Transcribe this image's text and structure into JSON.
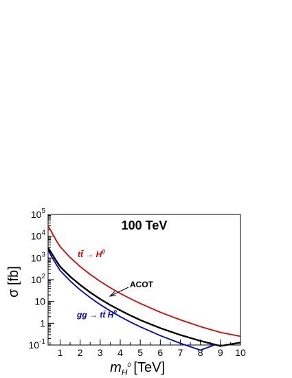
{
  "chart_data": {
    "type": "line",
    "title": "100 TeV",
    "xlabel": "m",
    "xlabel_sub": "H",
    "xlabel_sup": "0",
    "xlabel_unit": "[TeV]",
    "ylabel": "σ [fb]",
    "xlim": [
      0.4,
      10
    ],
    "ylim": [
      0.1,
      100000
    ],
    "yscale": "log",
    "grid": false,
    "x_ticks": [
      1,
      2,
      3,
      4,
      5,
      6,
      7,
      8,
      9,
      10
    ],
    "x_tick_labels": [
      "1",
      "2",
      "3",
      "4",
      "5",
      "6",
      "7",
      "8",
      "9",
      "10"
    ],
    "y_ticks": [
      0.1,
      1,
      10,
      100,
      1000,
      10000,
      100000
    ],
    "y_tick_labels": [
      {
        "base": "10",
        "exp": "-1"
      },
      {
        "base": "1",
        "exp": ""
      },
      {
        "base": "10",
        "exp": ""
      },
      {
        "base": "10",
        "exp": "2"
      },
      {
        "base": "10",
        "exp": "3"
      },
      {
        "base": "10",
        "exp": "4"
      },
      {
        "base": "10",
        "exp": "5"
      }
    ],
    "series": [
      {
        "label_parts": [
          "tt̄ → H",
          "0"
        ],
        "color": "#dd0000",
        "points": [
          [
            0.4,
            30000
          ],
          [
            0.6,
            14000
          ],
          [
            0.8,
            6500
          ],
          [
            1.0,
            3300
          ],
          [
            1.5,
            1050
          ],
          [
            2.0,
            400
          ],
          [
            2.5,
            175
          ],
          [
            3.0,
            84
          ],
          [
            3.5,
            43
          ],
          [
            4.0,
            23.5
          ],
          [
            4.5,
            13.5
          ],
          [
            5.0,
            8.1
          ],
          [
            6.0,
            3.2
          ],
          [
            7.0,
            1.43
          ],
          [
            8.0,
            0.7
          ],
          [
            9.0,
            0.38
          ],
          [
            10.0,
            0.25
          ]
        ]
      },
      {
        "label_parts": [
          "ACOT",
          ""
        ],
        "color": "#000000",
        "points": [
          [
            0.4,
            3000
          ],
          [
            0.6,
            1500
          ],
          [
            0.8,
            750
          ],
          [
            1.0,
            400
          ],
          [
            1.5,
            140
          ],
          [
            2.0,
            58
          ],
          [
            2.5,
            26
          ],
          [
            3.0,
            13
          ],
          [
            3.5,
            6.9
          ],
          [
            4.0,
            3.9
          ],
          [
            4.5,
            2.3
          ],
          [
            5.0,
            1.4
          ],
          [
            6.0,
            0.6
          ],
          [
            7.0,
            0.29
          ],
          [
            8.0,
            0.155
          ],
          [
            9.0,
            0.09
          ],
          [
            10.0,
            0.13
          ]
        ]
      },
      {
        "label_parts": [
          "gg → tt̄ H",
          "0"
        ],
        "color": "#0000cc",
        "points": [
          [
            0.4,
            2300
          ],
          [
            0.6,
            1050
          ],
          [
            0.8,
            520
          ],
          [
            1.0,
            265
          ],
          [
            1.5,
            88
          ],
          [
            2.0,
            34
          ],
          [
            2.5,
            15
          ],
          [
            3.0,
            7.2
          ],
          [
            3.5,
            3.7
          ],
          [
            4.0,
            2.0
          ],
          [
            4.5,
            1.15
          ],
          [
            5.0,
            0.68
          ],
          [
            6.0,
            0.27
          ],
          [
            7.0,
            0.12
          ],
          [
            8.0,
            0.058
          ],
          [
            8.7,
            0.1
          ]
        ]
      }
    ]
  }
}
